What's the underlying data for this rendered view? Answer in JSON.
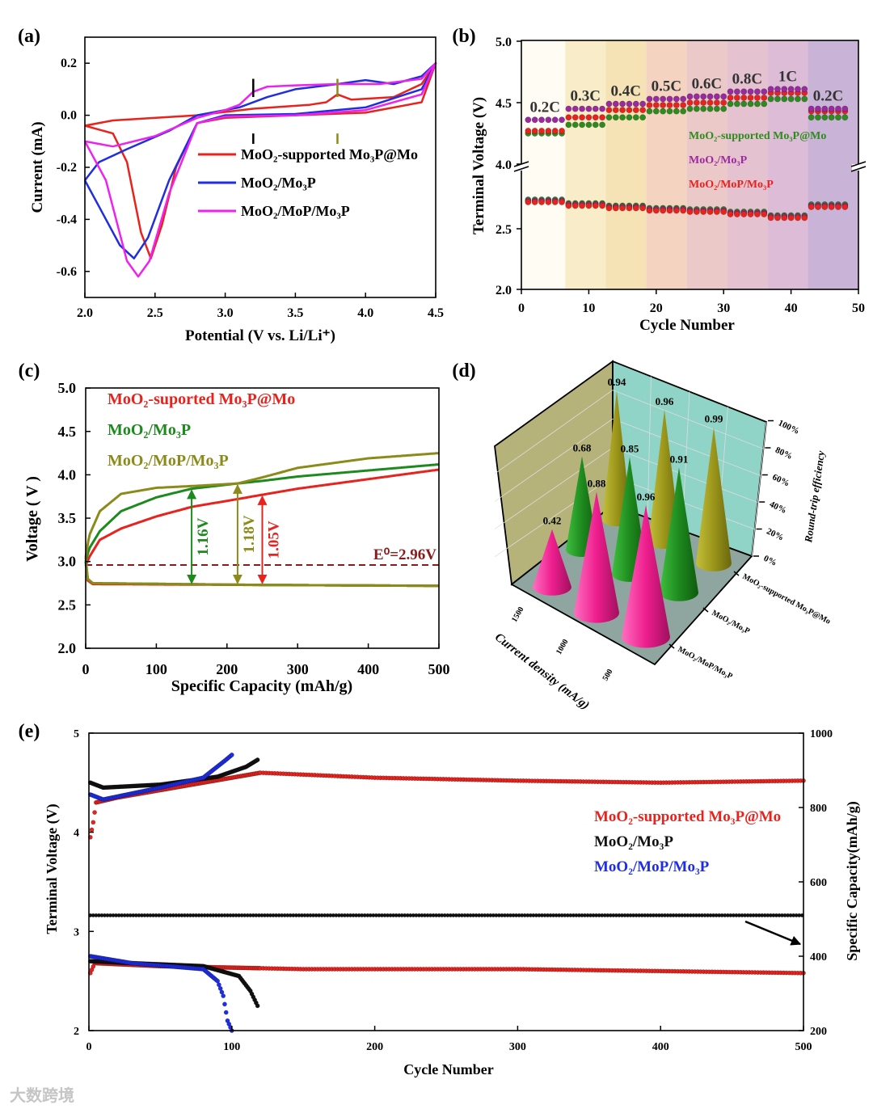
{
  "watermark": "大数跨境",
  "chart_data": [
    {
      "panel": "(a)",
      "type": "line",
      "xlabel": "Potential (V vs. Li/Li⁺)",
      "ylabel": "Current  (mA)",
      "xlim": [
        2.0,
        4.5
      ],
      "ylim": [
        -0.7,
        0.3
      ],
      "xticks": [
        "2.0",
        "2.5",
        "3.0",
        "3.5",
        "4.0",
        "4.5"
      ],
      "yticks": [
        "0.2",
        "0.0",
        "-0.2",
        "-0.4",
        "-0.6"
      ],
      "yticks_values": [
        0.2,
        0.0,
        -0.2,
        -0.4,
        -0.6
      ],
      "markers": [
        {
          "x": 3.2,
          "color": "#000000"
        },
        {
          "x": 3.8,
          "color": "#8b8b1a"
        }
      ],
      "series": [
        {
          "name": "MoO₂-supported Mo₃P@Mo",
          "color": "#e8231e",
          "points": [
            [
              2.0,
              -0.04
            ],
            [
              2.2,
              -0.02
            ],
            [
              2.8,
              0.0
            ],
            [
              3.2,
              0.025
            ],
            [
              3.6,
              0.04
            ],
            [
              3.72,
              0.05
            ],
            [
              3.8,
              0.08
            ],
            [
              3.9,
              0.06
            ],
            [
              4.2,
              0.07
            ],
            [
              4.4,
              0.12
            ],
            [
              4.5,
              0.2
            ],
            [
              4.4,
              0.05
            ],
            [
              4.0,
              0.01
            ],
            [
              3.5,
              0.0
            ],
            [
              3.0,
              -0.01
            ],
            [
              2.8,
              -0.03
            ],
            [
              2.65,
              -0.2
            ],
            [
              2.55,
              -0.42
            ],
            [
              2.47,
              -0.55
            ],
            [
              2.4,
              -0.45
            ],
            [
              2.3,
              -0.18
            ],
            [
              2.2,
              -0.07
            ],
            [
              2.0,
              -0.04
            ]
          ]
        },
        {
          "name": "MoO₂/Mo₃P",
          "color": "#1e2ee0",
          "points": [
            [
              2.0,
              -0.25
            ],
            [
              2.1,
              -0.18
            ],
            [
              2.3,
              -0.13
            ],
            [
              2.6,
              -0.06
            ],
            [
              2.8,
              0.0
            ],
            [
              3.1,
              0.03
            ],
            [
              3.3,
              0.07
            ],
            [
              3.5,
              0.1
            ],
            [
              3.8,
              0.12
            ],
            [
              4.0,
              0.135
            ],
            [
              4.2,
              0.12
            ],
            [
              4.4,
              0.15
            ],
            [
              4.5,
              0.2
            ],
            [
              4.4,
              0.1
            ],
            [
              4.0,
              0.03
            ],
            [
              3.5,
              0.005
            ],
            [
              3.0,
              0.0
            ],
            [
              2.8,
              -0.03
            ],
            [
              2.6,
              -0.25
            ],
            [
              2.45,
              -0.47
            ],
            [
              2.35,
              -0.55
            ],
            [
              2.25,
              -0.5
            ],
            [
              2.1,
              -0.35
            ],
            [
              2.0,
              -0.25
            ]
          ]
        },
        {
          "name": "MoO₂/MoP/Mo₃P",
          "color": "#ee22ee",
          "points": [
            [
              2.0,
              -0.1
            ],
            [
              2.2,
              -0.12
            ],
            [
              2.5,
              -0.08
            ],
            [
              2.8,
              -0.01
            ],
            [
              3.0,
              0.02
            ],
            [
              3.1,
              0.04
            ],
            [
              3.2,
              0.09
            ],
            [
              3.3,
              0.11
            ],
            [
              3.5,
              0.115
            ],
            [
              3.8,
              0.12
            ],
            [
              4.1,
              0.12
            ],
            [
              4.4,
              0.14
            ],
            [
              4.5,
              0.2
            ],
            [
              4.4,
              0.08
            ],
            [
              4.0,
              0.02
            ],
            [
              3.5,
              0.0
            ],
            [
              3.0,
              -0.005
            ],
            [
              2.8,
              -0.03
            ],
            [
              2.6,
              -0.3
            ],
            [
              2.46,
              -0.56
            ],
            [
              2.38,
              -0.62
            ],
            [
              2.3,
              -0.56
            ],
            [
              2.15,
              -0.25
            ],
            [
              2.0,
              -0.1
            ]
          ]
        }
      ]
    },
    {
      "panel": "(b)",
      "type": "scatter",
      "xlabel": "Cycle Number",
      "ylabel": "Terminal Voltage  (V)",
      "xlim": [
        0,
        50
      ],
      "ylim": [
        2.0,
        5.0
      ],
      "axis_break": [
        3.0,
        4.0
      ],
      "xticks": [
        "0",
        "10",
        "20",
        "30",
        "40",
        "50"
      ],
      "xticks_values": [
        0,
        10,
        20,
        30,
        40,
        50
      ],
      "yticks": [
        "2.0",
        "2.5",
        "4.0",
        "4.5",
        "5.0"
      ],
      "yticks_values": [
        2.0,
        2.5,
        4.0,
        4.5,
        5.0
      ],
      "legend": [
        {
          "name": "MoO₂-supported Mo₃P@Mo",
          "color": "#2e8b1e"
        },
        {
          "name": "MoO₂/Mo₃P",
          "color": "#9a2aa0"
        },
        {
          "name": "MoO₂/MoP/Mo₃P",
          "color": "#e8231e"
        }
      ],
      "segments": [
        {
          "rate": "0.2C",
          "cycles": [
            1,
            6
          ],
          "band": "#fffdf3",
          "charge": [
            4.25,
            4.36,
            4.27
          ],
          "discharge": 2.73
        },
        {
          "rate": "0.3C",
          "cycles": [
            7,
            12
          ],
          "band": "#f8edc8",
          "charge": [
            4.32,
            4.45,
            4.38
          ],
          "discharge": 2.7
        },
        {
          "rate": "0.4C",
          "cycles": [
            13,
            18
          ],
          "band": "#f5e3b5",
          "charge": [
            4.38,
            4.49,
            4.44
          ],
          "discharge": 2.68
        },
        {
          "rate": "0.5C",
          "cycles": [
            19,
            24
          ],
          "band": "#f4d4c0",
          "charge": [
            4.43,
            4.53,
            4.48
          ],
          "discharge": 2.66
        },
        {
          "rate": "0.6C",
          "cycles": [
            25,
            30
          ],
          "band": "#ecc9c9",
          "charge": [
            4.45,
            4.55,
            4.5
          ],
          "discharge": 2.65
        },
        {
          "rate": "0.8C",
          "cycles": [
            31,
            36
          ],
          "band": "#e4c2d0",
          "charge": [
            4.49,
            4.59,
            4.54
          ],
          "discharge": 2.63
        },
        {
          "rate": "1C",
          "cycles": [
            37,
            42
          ],
          "band": "#dcbcd6",
          "charge": [
            4.53,
            4.61,
            4.58
          ],
          "discharge": 2.6
        },
        {
          "rate": "0.2C",
          "cycles": [
            43,
            48
          ],
          "band": "#c9b3d6",
          "charge": [
            4.38,
            4.45,
            4.43
          ],
          "discharge": 2.69
        }
      ]
    },
    {
      "panel": "(c)",
      "type": "line",
      "xlabel": "Specific Capacity (mAh/g)",
      "ylabel": "Voltage  ( V )",
      "xlim": [
        0,
        500
      ],
      "ylim": [
        2.0,
        5.0
      ],
      "xticks": [
        "0",
        "100",
        "200",
        "300",
        "400",
        "500"
      ],
      "xticks_values": [
        0,
        100,
        200,
        300,
        400,
        500
      ],
      "yticks": [
        "2.0",
        "2.5",
        "3.0",
        "3.5",
        "4.0",
        "4.5",
        "5.0"
      ],
      "yticks_values": [
        2.0,
        2.5,
        3.0,
        3.5,
        4.0,
        4.5,
        5.0
      ],
      "reference_line": {
        "label": "E⁰=2.96V",
        "value": 2.96,
        "color": "#8b1a1a"
      },
      "series": [
        {
          "name": "MoO₂-suported Mo₃P@Mo",
          "color": "#e8231e",
          "charge": [
            [
              0,
              2.95
            ],
            [
              5,
              3.05
            ],
            [
              20,
              3.25
            ],
            [
              50,
              3.38
            ],
            [
              100,
              3.52
            ],
            [
              150,
              3.63
            ],
            [
              215,
              3.72
            ],
            [
              250,
              3.77
            ],
            [
              300,
              3.84
            ],
            [
              400,
              3.95
            ],
            [
              500,
              4.06
            ]
          ],
          "discharge": [
            [
              0,
              3.0
            ],
            [
              3,
              2.78
            ],
            [
              10,
              2.74
            ],
            [
              250,
              2.73
            ],
            [
              500,
              2.72
            ]
          ],
          "gap": {
            "label": "1.05V",
            "x": 250
          }
        },
        {
          "name": "MoO₂/Mo₃P",
          "color": "#1e8a1e",
          "charge": [
            [
              0,
              3.0
            ],
            [
              5,
              3.15
            ],
            [
              20,
              3.35
            ],
            [
              50,
              3.58
            ],
            [
              100,
              3.74
            ],
            [
              150,
              3.84
            ],
            [
              215,
              3.9
            ],
            [
              250,
              3.93
            ],
            [
              300,
              3.98
            ],
            [
              400,
              4.05
            ],
            [
              500,
              4.12
            ]
          ],
          "discharge": [
            [
              0,
              3.0
            ],
            [
              3,
              2.8
            ],
            [
              10,
              2.75
            ],
            [
              250,
              2.73
            ],
            [
              500,
              2.72
            ]
          ],
          "gap": {
            "label": "1.16V",
            "x": 150
          }
        },
        {
          "name": "MoO₂/MoP/Mo₃P",
          "color": "#8b8b1a",
          "charge": [
            [
              0,
              3.05
            ],
            [
              5,
              3.3
            ],
            [
              20,
              3.58
            ],
            [
              50,
              3.78
            ],
            [
              100,
              3.85
            ],
            [
              150,
              3.87
            ],
            [
              215,
              3.9
            ],
            [
              250,
              3.97
            ],
            [
              300,
              4.08
            ],
            [
              400,
              4.19
            ],
            [
              500,
              4.25
            ]
          ],
          "discharge": [
            [
              0,
              3.05
            ],
            [
              3,
              2.8
            ],
            [
              10,
              2.75
            ],
            [
              250,
              2.73
            ],
            [
              500,
              2.72
            ]
          ],
          "gap": {
            "label": "1.18V",
            "x": 215
          }
        }
      ]
    },
    {
      "panel": "(d)",
      "type": "bar3d",
      "xlabel": "Current density (mA/g)",
      "zlabel": "Round-trip efficiency",
      "xticks": [
        "1500",
        "1000",
        "500"
      ],
      "yticks": [
        "MoO₂-supported Mo₃P@Mo",
        "MoO₂/Mo₃P",
        "MoO₂/MoP/Mo₃P"
      ],
      "zticks": [
        "0%",
        "20%",
        "40%",
        "60%",
        "80%",
        "100%"
      ],
      "series": [
        {
          "name": "MoO₂/MoP/Mo₃P",
          "color": "#ee1e8e",
          "values": [
            0.42,
            0.88,
            0.96
          ]
        },
        {
          "name": "MoO₂/Mo₃P",
          "color": "#1e8a1e",
          "values": [
            0.68,
            0.85,
            0.91
          ]
        },
        {
          "name": "MoO₂-supported Mo₃P@Mo",
          "color": "#9a951a",
          "values": [
            0.94,
            0.96,
            0.99
          ]
        }
      ],
      "value_labels": [
        "0.42",
        "0.88",
        "0.96",
        "0.68",
        "0.85",
        "0.91",
        "0.94",
        "0.96",
        "0.99"
      ]
    },
    {
      "panel": "(e)",
      "type": "scatter",
      "xlabel": "Cycle Number",
      "ylabel": "Terminal Voltage (V)",
      "ylabel_right": "Specific Capacity(mAh/g)",
      "xlim": [
        0,
        500
      ],
      "ylim": [
        2,
        5
      ],
      "ylim_right": [
        200,
        1000
      ],
      "xticks": [
        "0",
        "100",
        "200",
        "300",
        "400",
        "500"
      ],
      "xticks_values": [
        0,
        100,
        200,
        300,
        400,
        500
      ],
      "yticks": [
        "2",
        "3",
        "4",
        "5"
      ],
      "yticks_values": [
        2,
        3,
        4,
        5
      ],
      "yticks_right": [
        "200",
        "400",
        "600",
        "800",
        "1000"
      ],
      "yticks_right_values": [
        200,
        400,
        600,
        800,
        1000
      ],
      "series": [
        {
          "name": "MoO₂-supported Mo₃P@Mo",
          "color": "#e8231e",
          "cycles": 500,
          "charge": [
            [
              1,
              3.95
            ],
            [
              3,
              4.1
            ],
            [
              5,
              4.3
            ],
            [
              20,
              4.35
            ],
            [
              60,
              4.45
            ],
            [
              100,
              4.55
            ],
            [
              120,
              4.6
            ],
            [
              200,
              4.55
            ],
            [
              300,
              4.52
            ],
            [
              400,
              4.5
            ],
            [
              500,
              4.52
            ]
          ],
          "discharge": [
            [
              1,
              2.58
            ],
            [
              4,
              2.68
            ],
            [
              50,
              2.65
            ],
            [
              150,
              2.62
            ],
            [
              300,
              2.62
            ],
            [
              500,
              2.58
            ]
          ]
        },
        {
          "name": "MoO₂/Mo₃P",
          "color": "#111111",
          "cycles": 118,
          "charge": [
            [
              1,
              4.5
            ],
            [
              10,
              4.45
            ],
            [
              50,
              4.48
            ],
            [
              90,
              4.56
            ],
            [
              110,
              4.66
            ],
            [
              118,
              4.73
            ]
          ],
          "discharge": [
            [
              1,
              2.7
            ],
            [
              30,
              2.68
            ],
            [
              80,
              2.65
            ],
            [
              105,
              2.55
            ],
            [
              113,
              2.4
            ],
            [
              118,
              2.25
            ]
          ],
          "capacity": 510
        },
        {
          "name": "MoO₂/MoP/Mo₃P",
          "color": "#1e2ee8",
          "cycles": 100,
          "charge": [
            [
              1,
              4.38
            ],
            [
              10,
              4.33
            ],
            [
              50,
              4.45
            ],
            [
              80,
              4.55
            ],
            [
              95,
              4.72
            ],
            [
              100,
              4.78
            ]
          ],
          "discharge": [
            [
              1,
              2.75
            ],
            [
              30,
              2.68
            ],
            [
              80,
              2.62
            ],
            [
              90,
              2.5
            ],
            [
              94,
              2.35
            ],
            [
              97,
              2.1
            ],
            [
              100,
              2.0
            ]
          ]
        }
      ]
    }
  ]
}
